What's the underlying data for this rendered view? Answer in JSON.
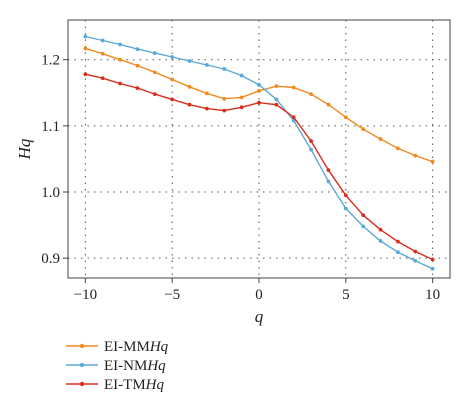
{
  "chart_data": {
    "type": "line",
    "xlabel": "q",
    "ylabel": "Hq",
    "xlim": [
      -11,
      11
    ],
    "ylim": [
      0.87,
      1.26
    ],
    "xticks": [
      -10,
      -5,
      0,
      5,
      10
    ],
    "xtick_labels": [
      "−10",
      "−5",
      "0",
      "5",
      "10"
    ],
    "yticks": [
      0.9,
      1.0,
      1.1,
      1.2
    ],
    "ytick_labels": [
      "0.9",
      "1.0",
      "1.1",
      "1.2"
    ],
    "grid": true,
    "legend_position": "bottom-left",
    "x": [
      -10,
      -9,
      -8,
      -7,
      -6,
      -5,
      -4,
      -3,
      -2,
      -1,
      0,
      1,
      2,
      3,
      4,
      5,
      6,
      7,
      8,
      9,
      10
    ],
    "series": [
      {
        "name": "EI-MMHq",
        "legend_parts": [
          "EI-MM",
          "Hq"
        ],
        "color": "#f28a1f",
        "values": [
          1.217,
          1.209,
          1.2,
          1.191,
          1.181,
          1.17,
          1.159,
          1.149,
          1.141,
          1.143,
          1.153,
          1.16,
          1.158,
          1.148,
          1.132,
          1.113,
          1.095,
          1.08,
          1.066,
          1.055,
          1.046
        ]
      },
      {
        "name": "EI-NMHq",
        "legend_parts": [
          "EI-NM",
          "Hq"
        ],
        "color": "#5aa8d6",
        "values": [
          1.235,
          1.229,
          1.223,
          1.216,
          1.21,
          1.204,
          1.198,
          1.192,
          1.186,
          1.176,
          1.162,
          1.14,
          1.108,
          1.064,
          1.016,
          0.975,
          0.948,
          0.926,
          0.909,
          0.896,
          0.884
        ]
      },
      {
        "name": "EI-TMHq",
        "legend_parts": [
          "EI-TM",
          "Hq"
        ],
        "color": "#d62f1e",
        "values": [
          1.178,
          1.172,
          1.164,
          1.157,
          1.148,
          1.14,
          1.132,
          1.126,
          1.123,
          1.128,
          1.135,
          1.132,
          1.113,
          1.077,
          1.033,
          0.995,
          0.965,
          0.943,
          0.925,
          0.91,
          0.898
        ]
      }
    ]
  }
}
